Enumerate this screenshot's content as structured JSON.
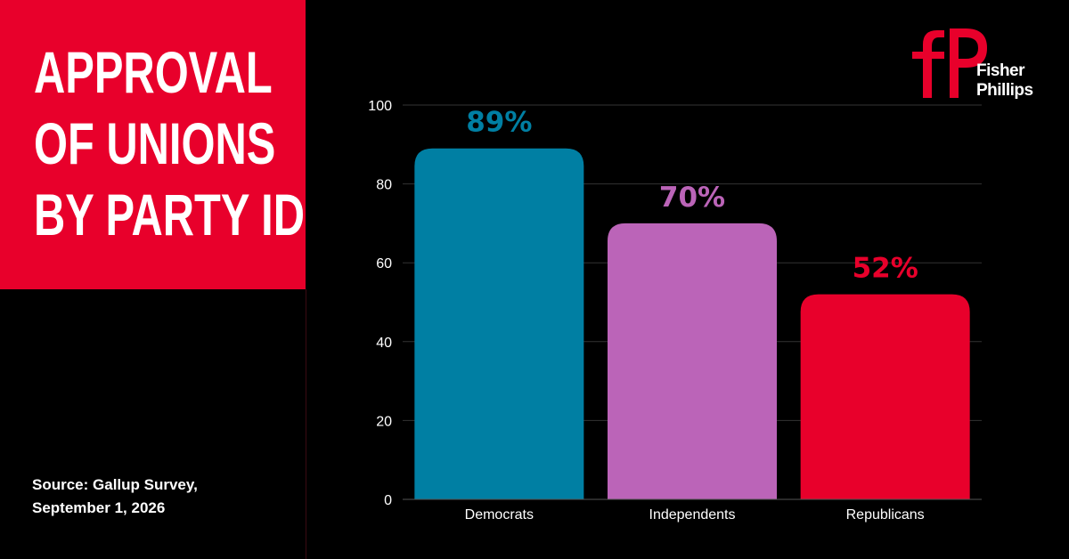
{
  "title_lines": [
    "APPROVAL",
    "OF UNIONS",
    "BY PARTY ID"
  ],
  "source_lines": [
    "Source: Gallup Survey,",
    "September 1, 2026"
  ],
  "logo": {
    "line1": "Fisher",
    "line2": "Phillips",
    "color": "#e8002b"
  },
  "colors": {
    "accent": "#e8002b",
    "background": "#000000"
  },
  "chart_data": {
    "type": "bar",
    "categories": [
      "Democrats",
      "Independents",
      "Republicans"
    ],
    "values": [
      89,
      70,
      52
    ],
    "data_labels": [
      "89%",
      "70%",
      "52%"
    ],
    "colors": [
      "#007fa3",
      "#bb64b8",
      "#e8002b"
    ],
    "ylim": [
      0,
      100
    ],
    "yticks": [
      0,
      20,
      40,
      60,
      80,
      100
    ],
    "grid": true,
    "title": "",
    "xlabel": "",
    "ylabel": ""
  }
}
